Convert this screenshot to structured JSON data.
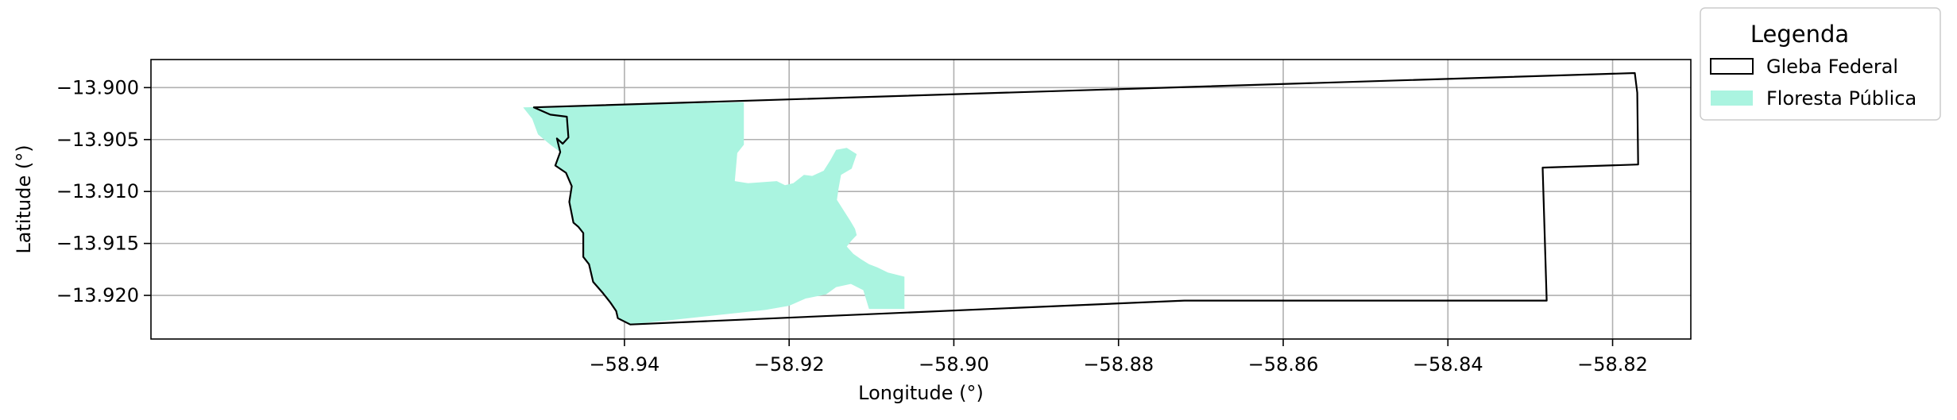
{
  "chart_data": {
    "type": "map",
    "xlabel": "Longitude (°)",
    "ylabel": "Latitude (°)",
    "xlim": [
      -58.9975,
      -58.8105
    ],
    "ylim": [
      -13.9242,
      -13.8973
    ],
    "xticks": [
      -58.94,
      -58.92,
      -58.9,
      -58.88,
      -58.86,
      -58.84,
      -58.82
    ],
    "yticks": [
      -13.9,
      -13.905,
      -13.91,
      -13.915,
      -13.92
    ],
    "xtick_labels": [
      "−58.94",
      "−58.92",
      "−58.90",
      "−58.88",
      "−58.86",
      "−58.84",
      "−58.82"
    ],
    "ytick_labels": [
      "−13.900",
      "−13.905",
      "−13.910",
      "−13.915",
      "−13.920"
    ],
    "grid": true,
    "legend": {
      "title": "Legenda",
      "placement": "outside-top-right",
      "entries": [
        "Gleba Federal",
        "Floresta Pública"
      ]
    },
    "layers": [
      {
        "name": "Gleba Federal",
        "style": "outline",
        "stroke": "#000000",
        "fill": "none",
        "coords": [
          [
            -58.951,
            -13.9019
          ],
          [
            -58.949,
            -13.9026
          ],
          [
            -58.947,
            -13.9028
          ],
          [
            -58.9468,
            -13.9048
          ],
          [
            -58.9475,
            -13.9054
          ],
          [
            -58.9482,
            -13.9049
          ],
          [
            -58.9478,
            -13.9062
          ],
          [
            -58.9484,
            -13.9075
          ],
          [
            -58.9471,
            -13.9082
          ],
          [
            -58.9464,
            -13.9095
          ],
          [
            -58.9467,
            -13.911
          ],
          [
            -58.9462,
            -13.913
          ],
          [
            -58.9456,
            -13.9134
          ],
          [
            -58.945,
            -13.914
          ],
          [
            -58.945,
            -13.915
          ],
          [
            -58.945,
            -13.9163
          ],
          [
            -58.9443,
            -13.917
          ],
          [
            -58.9438,
            -13.9187
          ],
          [
            -58.9426,
            -13.9198
          ],
          [
            -58.9417,
            -13.9207
          ],
          [
            -58.941,
            -13.9215
          ],
          [
            -58.9408,
            -13.9222
          ],
          [
            -58.9393,
            -13.9228
          ],
          [
            -58.872,
            -13.9205
          ],
          [
            -58.828,
            -13.9205
          ],
          [
            -58.8285,
            -13.9077
          ],
          [
            -58.8169,
            -13.9074
          ],
          [
            -58.817,
            -13.9005
          ],
          [
            -58.8173,
            -13.8986
          ],
          [
            -58.951,
            -13.9019
          ]
        ]
      },
      {
        "name": "Floresta Pública",
        "style": "filled",
        "fill": "#aaf4e0",
        "coords": [
          [
            -58.9523,
            -13.9019
          ],
          [
            -58.9255,
            -13.9014
          ],
          [
            -58.9255,
            -13.9055
          ],
          [
            -58.9263,
            -13.9063
          ],
          [
            -58.9266,
            -13.909
          ],
          [
            -58.925,
            -13.9092
          ],
          [
            -58.9215,
            -13.909
          ],
          [
            -58.9205,
            -13.9094
          ],
          [
            -58.9195,
            -13.9092
          ],
          [
            -58.9182,
            -13.9084
          ],
          [
            -58.9172,
            -13.9085
          ],
          [
            -58.9158,
            -13.908
          ],
          [
            -58.915,
            -13.907
          ],
          [
            -58.9143,
            -13.906
          ],
          [
            -58.913,
            -13.9058
          ],
          [
            -58.9118,
            -13.9064
          ],
          [
            -58.9124,
            -13.9078
          ],
          [
            -58.9137,
            -13.9084
          ],
          [
            -58.914,
            -13.9097
          ],
          [
            -58.9142,
            -13.9108
          ],
          [
            -58.9134,
            -13.9118
          ],
          [
            -58.9126,
            -13.9128
          ],
          [
            -58.912,
            -13.9136
          ],
          [
            -58.9118,
            -13.9142
          ],
          [
            -58.9124,
            -13.9147
          ],
          [
            -58.913,
            -13.9153
          ],
          [
            -58.9122,
            -13.916
          ],
          [
            -58.9113,
            -13.9165
          ],
          [
            -58.9103,
            -13.917
          ],
          [
            -58.9093,
            -13.9173
          ],
          [
            -58.908,
            -13.9178
          ],
          [
            -58.907,
            -13.918
          ],
          [
            -58.906,
            -13.9182
          ],
          [
            -58.906,
            -13.9213
          ],
          [
            -58.9103,
            -13.9213
          ],
          [
            -58.911,
            -13.9195
          ],
          [
            -58.9125,
            -13.9189
          ],
          [
            -58.9143,
            -13.9192
          ],
          [
            -58.9155,
            -13.9199
          ],
          [
            -58.918,
            -13.9203
          ],
          [
            -58.92,
            -13.921
          ],
          [
            -58.9229,
            -13.9214
          ],
          [
            -58.9393,
            -13.9228
          ],
          [
            -58.9408,
            -13.9222
          ],
          [
            -58.941,
            -13.9215
          ],
          [
            -58.9417,
            -13.9207
          ],
          [
            -58.9426,
            -13.9198
          ],
          [
            -58.9438,
            -13.9187
          ],
          [
            -58.9443,
            -13.917
          ],
          [
            -58.945,
            -13.9163
          ],
          [
            -58.945,
            -13.915
          ],
          [
            -58.945,
            -13.914
          ],
          [
            -58.9456,
            -13.9134
          ],
          [
            -58.9462,
            -13.913
          ],
          [
            -58.9467,
            -13.911
          ],
          [
            -58.9464,
            -13.9095
          ],
          [
            -58.9471,
            -13.9082
          ],
          [
            -58.9484,
            -13.9075
          ],
          [
            -58.9478,
            -13.9062
          ],
          [
            -58.949,
            -13.9055
          ],
          [
            -58.9505,
            -13.9045
          ],
          [
            -58.9512,
            -13.903
          ],
          [
            -58.9523,
            -13.9019
          ]
        ]
      }
    ]
  }
}
